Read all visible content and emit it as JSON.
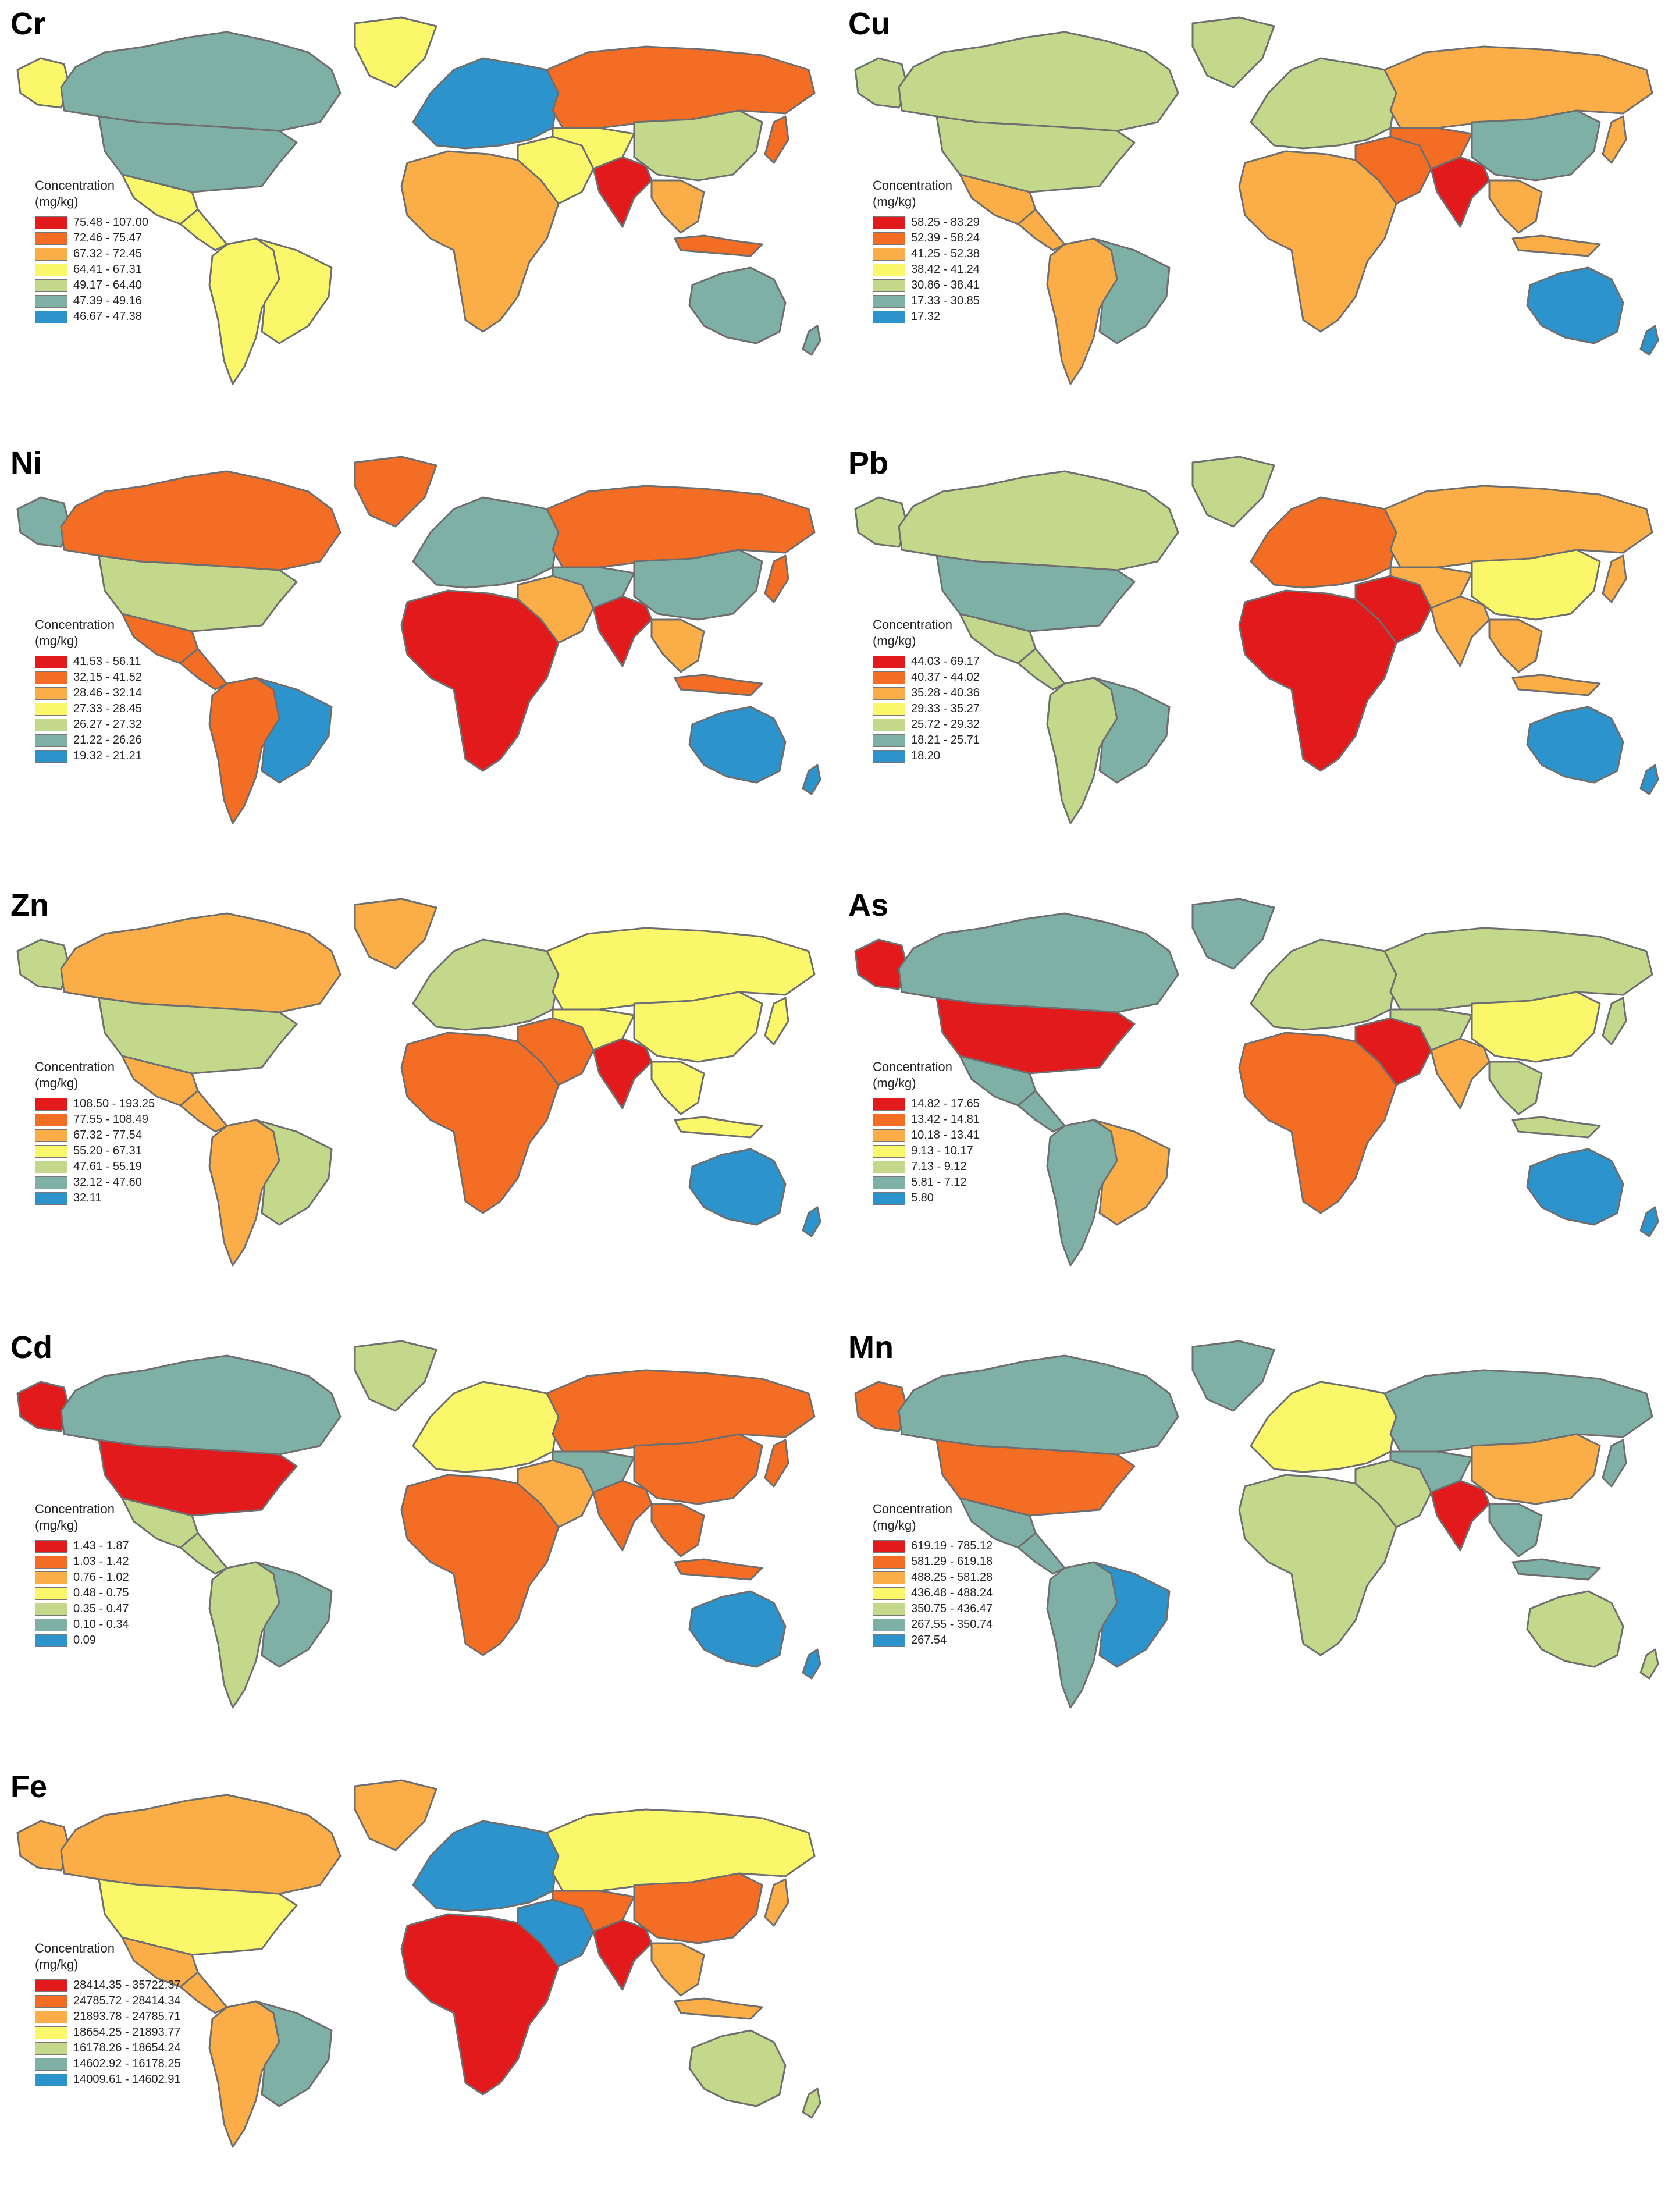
{
  "legend_title_line1": "Concentration",
  "legend_title_line2": "(mg/kg)",
  "palette": [
    "#e31a1c",
    "#f46d25",
    "#fbad47",
    "#fbf76a",
    "#c4d88c",
    "#7fb0a6",
    "#2c93cc"
  ],
  "panels": [
    {
      "element": "Cr",
      "legend": [
        "75.48 - 107.00",
        "72.46 - 75.47",
        "67.32 - 72.45",
        "64.41 - 67.31",
        "49.17 - 64.40",
        "47.39 - 49.16",
        "46.67 - 47.38"
      ],
      "regions": {
        "canada": 5,
        "alaska": 3,
        "greenland": 3,
        "usa": 5,
        "mexico": 3,
        "central": 3,
        "south_america": 3,
        "brazil": 3,
        "europe": 6,
        "russia": 1,
        "africa": 2,
        "middle_east": 3,
        "central_asia": 3,
        "china": 4,
        "india": 0,
        "sea": 2,
        "japan": 1,
        "indonesia": 1,
        "australia": 5,
        "newzealand": 5
      }
    },
    {
      "element": "Cu",
      "legend": [
        "58.25 - 83.29",
        "52.39 - 58.24",
        "41.25 - 52.38",
        "38.42 - 41.24",
        "30.86 - 38.41",
        "17.33 - 30.85",
        "17.32"
      ],
      "regions": {
        "canada": 4,
        "alaska": 4,
        "greenland": 4,
        "usa": 4,
        "mexico": 2,
        "central": 2,
        "south_america": 2,
        "brazil": 5,
        "europe": 4,
        "russia": 2,
        "africa": 2,
        "middle_east": 1,
        "central_asia": 1,
        "china": 5,
        "india": 0,
        "sea": 2,
        "japan": 2,
        "indonesia": 2,
        "australia": 6,
        "newzealand": 6
      }
    },
    {
      "element": "Ni",
      "legend": [
        "41.53 - 56.11",
        "32.15 - 41.52",
        "28.46 - 32.14",
        "27.33 - 28.45",
        "26.27 - 27.32",
        "21.22 - 26.26",
        "19.32 - 21.21"
      ],
      "regions": {
        "canada": 1,
        "alaska": 5,
        "greenland": 1,
        "usa": 4,
        "mexico": 1,
        "central": 1,
        "south_america": 1,
        "brazil": 6,
        "europe": 5,
        "russia": 1,
        "africa": 0,
        "middle_east": 2,
        "central_asia": 5,
        "china": 5,
        "india": 0,
        "sea": 2,
        "japan": 1,
        "indonesia": 1,
        "australia": 6,
        "newzealand": 6
      }
    },
    {
      "element": "Pb",
      "legend": [
        "44.03 - 69.17",
        "40.37 - 44.02",
        "35.28 - 40.36",
        "29.33 - 35.27",
        "25.72 - 29.32",
        "18.21 - 25.71",
        "18.20"
      ],
      "regions": {
        "canada": 4,
        "alaska": 4,
        "greenland": 4,
        "usa": 5,
        "mexico": 4,
        "central": 4,
        "south_america": 4,
        "brazil": 5,
        "europe": 1,
        "russia": 2,
        "africa": 0,
        "middle_east": 0,
        "central_asia": 2,
        "china": 3,
        "india": 2,
        "sea": 2,
        "japan": 2,
        "indonesia": 2,
        "australia": 6,
        "newzealand": 6
      }
    },
    {
      "element": "Zn",
      "legend": [
        "108.50 - 193.25",
        "77.55 - 108.49",
        "67.32 - 77.54",
        "55.20 - 67.31",
        "47.61 - 55.19",
        "32.12 - 47.60",
        "32.11"
      ],
      "regions": {
        "canada": 2,
        "alaska": 4,
        "greenland": 2,
        "usa": 4,
        "mexico": 2,
        "central": 2,
        "south_america": 2,
        "brazil": 4,
        "europe": 4,
        "russia": 3,
        "africa": 1,
        "middle_east": 1,
        "central_asia": 3,
        "china": 3,
        "india": 0,
        "sea": 3,
        "japan": 3,
        "indonesia": 3,
        "australia": 6,
        "newzealand": 6
      }
    },
    {
      "element": "As",
      "legend": [
        "14.82 - 17.65",
        "13.42 - 14.81",
        "10.18 - 13.41",
        "9.13 - 10.17",
        "7.13 - 9.12",
        "5.81 - 7.12",
        "5.80"
      ],
      "regions": {
        "canada": 5,
        "alaska": 0,
        "greenland": 5,
        "usa": 0,
        "mexico": 5,
        "central": 5,
        "south_america": 5,
        "brazil": 2,
        "europe": 4,
        "russia": 4,
        "africa": 1,
        "middle_east": 0,
        "central_asia": 4,
        "china": 3,
        "india": 2,
        "sea": 4,
        "japan": 4,
        "indonesia": 4,
        "australia": 6,
        "newzealand": 6
      }
    },
    {
      "element": "Cd",
      "legend": [
        "1.43 - 1.87",
        "1.03 - 1.42",
        "0.76 - 1.02",
        "0.48 - 0.75",
        "0.35 - 0.47",
        "0.10 - 0.34",
        "0.09"
      ],
      "regions": {
        "canada": 5,
        "alaska": 0,
        "greenland": 4,
        "usa": 0,
        "mexico": 4,
        "central": 4,
        "south_america": 4,
        "brazil": 5,
        "europe": 3,
        "russia": 1,
        "africa": 1,
        "middle_east": 2,
        "central_asia": 5,
        "china": 1,
        "india": 1,
        "sea": 1,
        "japan": 1,
        "indonesia": 1,
        "australia": 6,
        "newzealand": 6
      }
    },
    {
      "element": "Mn",
      "legend": [
        "619.19 - 785.12",
        "581.29 - 619.18",
        "488.25 - 581.28",
        "436.48 - 488.24",
        "350.75 - 436.47",
        "267.55 - 350.74",
        "267.54"
      ],
      "regions": {
        "canada": 5,
        "alaska": 1,
        "greenland": 5,
        "usa": 1,
        "mexico": 5,
        "central": 5,
        "south_america": 5,
        "brazil": 6,
        "europe": 3,
        "russia": 5,
        "africa": 4,
        "middle_east": 4,
        "central_asia": 5,
        "china": 2,
        "india": 0,
        "sea": 5,
        "japan": 5,
        "indonesia": 5,
        "australia": 4,
        "newzealand": 4
      }
    },
    {
      "element": "Fe",
      "legend": [
        "28414.35 - 35722.37",
        "24785.72 - 28414.34",
        "21893.78 - 24785.71",
        "18654.25 - 21893.77",
        "16178.26 - 18654.24",
        "14602.92 - 16178.25",
        "14009.61 - 14602.91"
      ],
      "regions": {
        "canada": 2,
        "alaska": 2,
        "greenland": 2,
        "usa": 3,
        "mexico": 2,
        "central": 2,
        "south_america": 2,
        "brazil": 5,
        "europe": 6,
        "russia": 3,
        "africa": 0,
        "middle_east": 6,
        "central_asia": 1,
        "china": 1,
        "india": 0,
        "sea": 2,
        "japan": 2,
        "indonesia": 2,
        "australia": 4,
        "newzealand": 4
      }
    }
  ]
}
